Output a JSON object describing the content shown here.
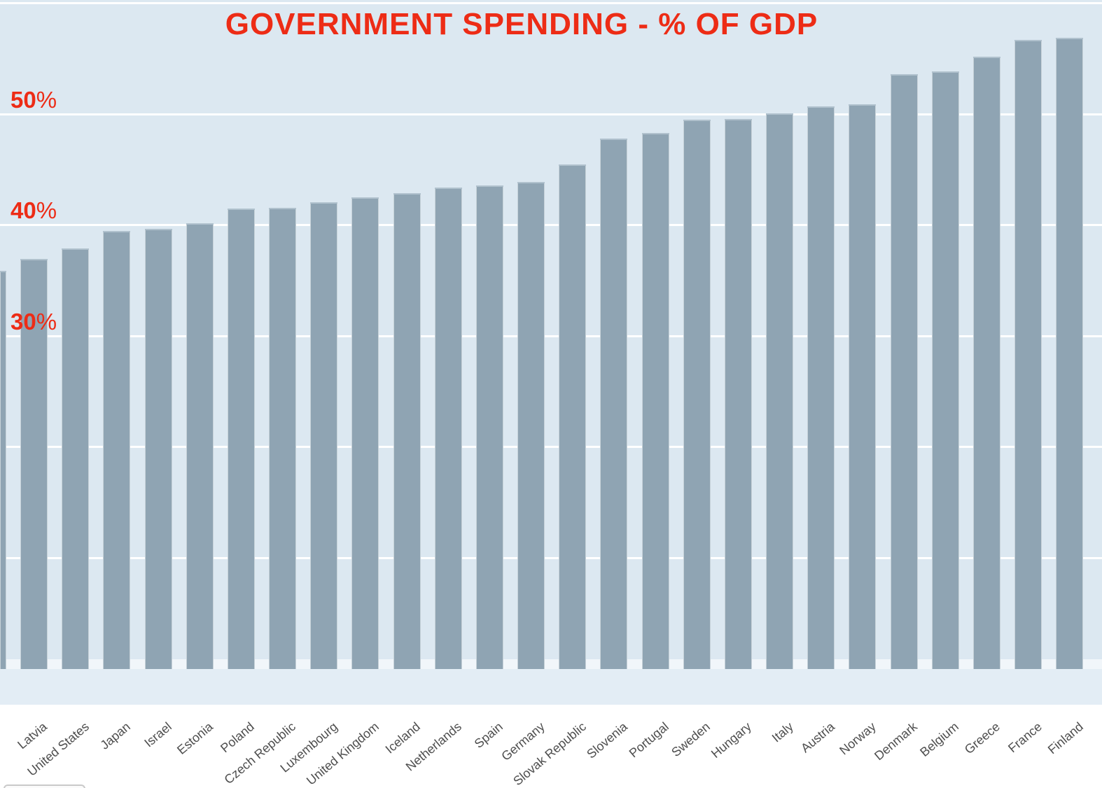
{
  "chart_data": {
    "type": "bar",
    "title": "GOVERNMENT SPENDING - % OF GDP",
    "categories": [
      "Latvia",
      "United States",
      "Japan",
      "Israel",
      "Estonia",
      "Poland",
      "Czech Republic",
      "Luxembourg",
      "United Kingdom",
      "Iceland",
      "Netherlands",
      "Spain",
      "Germany",
      "Slovak Republic",
      "Slovenia",
      "Portugal",
      "Sweden",
      "Hungary",
      "Italy",
      "Austria",
      "Norway",
      "Denmark",
      "Belgium",
      "Greece",
      "France",
      "Finland"
    ],
    "values": [
      37.0,
      37.9,
      39.5,
      39.7,
      40.2,
      41.5,
      41.6,
      42.1,
      42.5,
      42.9,
      43.4,
      43.6,
      43.9,
      45.5,
      47.8,
      48.3,
      49.5,
      49.6,
      50.1,
      50.7,
      50.9,
      53.6,
      53.9,
      55.2,
      56.7,
      56.9
    ],
    "partial_bar_at_left_edge": {
      "value": 35.9,
      "note": "bar clipped by left edge of image, its label is not visible"
    },
    "xlabel": "",
    "ylabel": "",
    "y_ticks": [
      30,
      40,
      50
    ],
    "y_tick_suffix": "%",
    "gridlines": [
      10,
      20,
      30,
      40,
      50,
      60
    ],
    "ylim": [
      0,
      60
    ],
    "legend": "none",
    "grid": "horizontal white gridlines drawn behind bars"
  },
  "colors": {
    "title_red": "#ed2c16",
    "bar_fill": "#8fa4b3",
    "plot_background": "#dce8f1",
    "axis_band": "#e3edf5",
    "gridline": "#ffffff",
    "category_label_gray": "#4e4e4e"
  }
}
